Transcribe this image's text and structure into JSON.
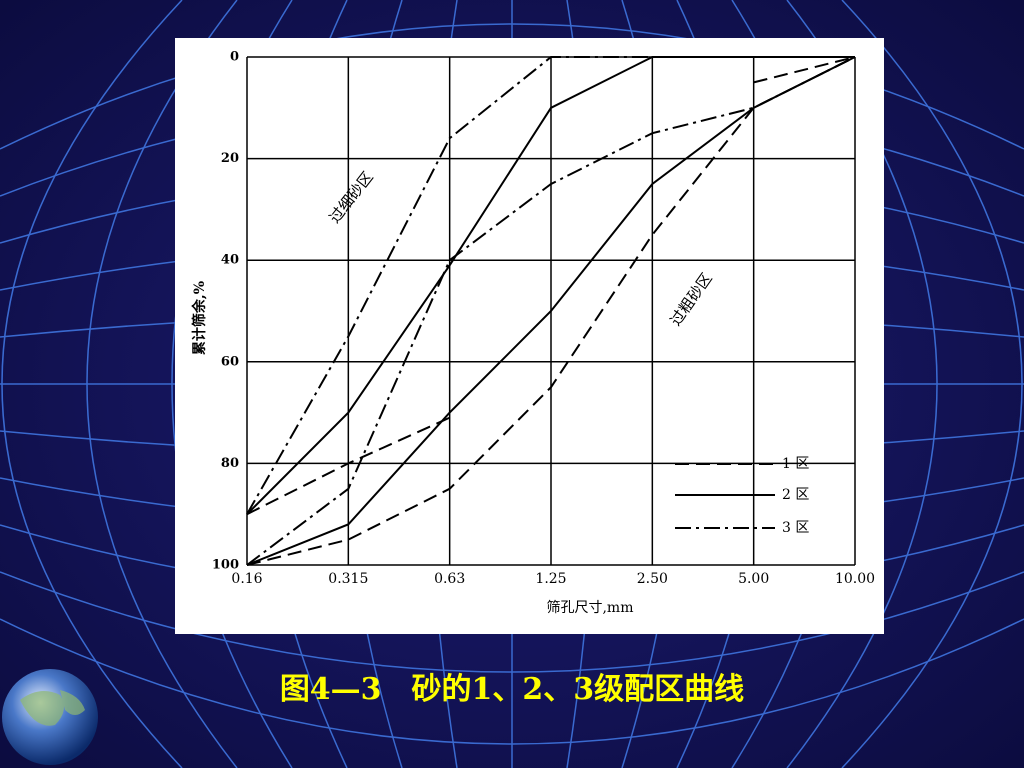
{
  "chart_data": {
    "type": "line",
    "caption": "图4—3　砂的1、2、3级配区曲线",
    "x_label": "筛孔尺寸,mm",
    "y_label": "累计筛余,%",
    "categories": [
      "0.16",
      "0.315",
      "0.63",
      "1.25",
      "2.50",
      "5.00",
      "10.00"
    ],
    "ylim": [
      100,
      0
    ],
    "yticks": [
      0,
      20,
      40,
      60,
      80,
      100
    ],
    "grid": true,
    "annotations": [
      "过细砂区",
      "过粗砂区"
    ],
    "series": [
      {
        "name": "1 区",
        "color": "#000000",
        "dash": "dashed",
        "lines": [
          [
            90,
            80,
            71,
            null,
            null,
            5,
            0
          ],
          [
            100,
            95,
            85,
            65,
            35,
            10,
            0
          ]
        ]
      },
      {
        "name": "2 区",
        "color": "#000000",
        "dash": "solid",
        "lines": [
          [
            90,
            70,
            41,
            10,
            0,
            0,
            0
          ],
          [
            100,
            92,
            70,
            50,
            25,
            10,
            0
          ]
        ]
      },
      {
        "name": "3 区",
        "color": "#000000",
        "dash": "dashdot",
        "lines": [
          [
            90,
            55,
            16,
            0,
            0,
            0,
            0
          ],
          [
            100,
            85,
            40,
            25,
            15,
            10,
            0
          ]
        ]
      }
    ]
  }
}
